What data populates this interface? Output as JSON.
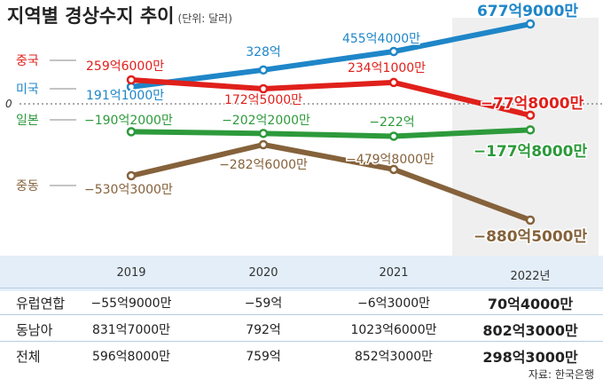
{
  "title": "지역별 경상수지 추이",
  "unit": "(단위: 달러)",
  "zero_label": "0",
  "chart_data": {
    "type": "line",
    "title": "지역별 경상수지 추이",
    "unit": "(단위: 달러)",
    "unit_value": "억 달러",
    "categories": [
      "2019",
      "2020",
      "2021",
      "2022년"
    ],
    "ylim": [
      -900,
      700
    ],
    "grid": false,
    "series": [
      {
        "name": "미국",
        "color": "#1f86c8",
        "values": [
          191.1,
          328,
          455.4,
          677.9
        ],
        "labels": [
          "191억1000만",
          "328억",
          "455억4000만",
          "677억9000만"
        ]
      },
      {
        "name": "중국",
        "color": "#e0201b",
        "values": [
          259.6,
          172.5,
          234.1,
          -77.8
        ],
        "labels": [
          "259억6000만",
          "172억5000만",
          "234억1000만",
          "−77억8000만"
        ]
      },
      {
        "name": "일본",
        "color": "#2d9a3b",
        "values": [
          -190.2,
          -202.2,
          -222,
          -177.8
        ],
        "labels": [
          "−190억2000만",
          "−202억2000만",
          "−222억",
          "−177억8000만"
        ]
      },
      {
        "name": "중동",
        "color": "#85623b",
        "values": [
          -530.3,
          -282.6,
          -479.8,
          -880.5
        ],
        "labels": [
          "−530억3000만",
          "−282억6000만",
          "−479억8000만",
          "−880억5000만"
        ]
      }
    ]
  },
  "table": {
    "columns": [
      "2019",
      "2020",
      "2021",
      "2022년"
    ],
    "rows": [
      {
        "label": "유럽연합",
        "values": [
          "−55억9000만",
          "−59억",
          "−6억3000만",
          "70억4000만"
        ]
      },
      {
        "label": "동남아",
        "values": [
          "831억7000만",
          "792억",
          "1023억6000만",
          "802억3000만"
        ]
      },
      {
        "label": "전체",
        "values": [
          "596억8000만",
          "759억",
          "852억3000만",
          "298억3000만"
        ]
      }
    ]
  },
  "source": "자료: 한국은행"
}
